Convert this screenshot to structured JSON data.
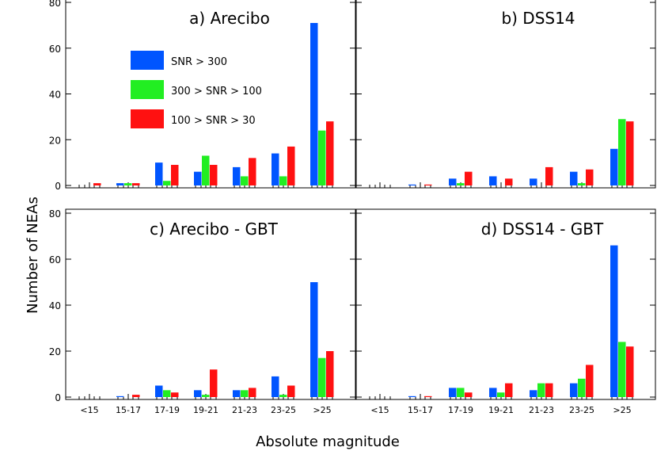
{
  "figure": {
    "ylabel": "Number of NEAs",
    "xlabel": "Absolute magnitude"
  },
  "legend": {
    "entries": [
      {
        "label": "SNR > 300",
        "color": "#0055ff"
      },
      {
        "label": "300 > SNR > 100",
        "color": "#22ee22"
      },
      {
        "label": "100 > SNR > 30",
        "color": "#ff1111"
      }
    ]
  },
  "chart_data": [
    {
      "type": "bar",
      "title": "a) Arecibo",
      "categories": [
        "<15",
        "15-17",
        "17-19",
        "19-21",
        "21-23",
        "23-25",
        ">25"
      ],
      "ylim": [
        0,
        80
      ],
      "yticks": [
        0,
        20,
        40,
        60,
        80
      ],
      "series": [
        {
          "name": "SNR > 300",
          "values": [
            0,
            1,
            10,
            6,
            8,
            14,
            71
          ]
        },
        {
          "name": "300 > SNR > 100",
          "values": [
            0,
            1,
            2,
            13,
            4,
            4,
            24
          ]
        },
        {
          "name": "100 > SNR > 30",
          "values": [
            1,
            1,
            9,
            9,
            12,
            17,
            28
          ]
        }
      ]
    },
    {
      "type": "bar",
      "title": "b) DSS14",
      "categories": [
        "<15",
        "15-17",
        "17-19",
        "19-21",
        "21-23",
        "23-25",
        ">25"
      ],
      "ylim": [
        0,
        80
      ],
      "yticks": [
        0,
        20,
        40,
        60,
        80
      ],
      "series": [
        {
          "name": "SNR > 300",
          "values": [
            0,
            0.4,
            3,
            4,
            3,
            6,
            16
          ]
        },
        {
          "name": "300 > SNR > 100",
          "values": [
            0,
            0,
            1,
            0,
            0,
            1,
            29
          ]
        },
        {
          "name": "100 > SNR > 30",
          "values": [
            0,
            0.4,
            6,
            3,
            8,
            7,
            28
          ]
        }
      ]
    },
    {
      "type": "bar",
      "title": "c) Arecibo - GBT",
      "categories": [
        "<15",
        "15-17",
        "17-19",
        "19-21",
        "21-23",
        "23-25",
        ">25"
      ],
      "ylim": [
        0,
        80
      ],
      "yticks": [
        0,
        20,
        40,
        60,
        80
      ],
      "series": [
        {
          "name": "SNR > 300",
          "values": [
            0,
            0.4,
            5,
            3,
            3,
            9,
            50
          ]
        },
        {
          "name": "300 > SNR > 100",
          "values": [
            0,
            0,
            3,
            1,
            3,
            1,
            17
          ]
        },
        {
          "name": "100 > SNR > 30",
          "values": [
            0,
            1,
            2,
            12,
            4,
            5,
            20
          ]
        }
      ]
    },
    {
      "type": "bar",
      "title": "d) DSS14 - GBT",
      "categories": [
        "<15",
        "15-17",
        "17-19",
        "19-21",
        "21-23",
        "23-25",
        ">25"
      ],
      "ylim": [
        0,
        80
      ],
      "yticks": [
        0,
        20,
        40,
        60,
        80
      ],
      "series": [
        {
          "name": "SNR > 300",
          "values": [
            0,
            0.4,
            4,
            4,
            3,
            6,
            66
          ]
        },
        {
          "name": "300 > SNR > 100",
          "values": [
            0,
            0,
            4,
            2,
            6,
            8,
            24
          ]
        },
        {
          "name": "100 > SNR > 30",
          "values": [
            0,
            0.4,
            2,
            6,
            6,
            14,
            22
          ]
        }
      ]
    }
  ]
}
